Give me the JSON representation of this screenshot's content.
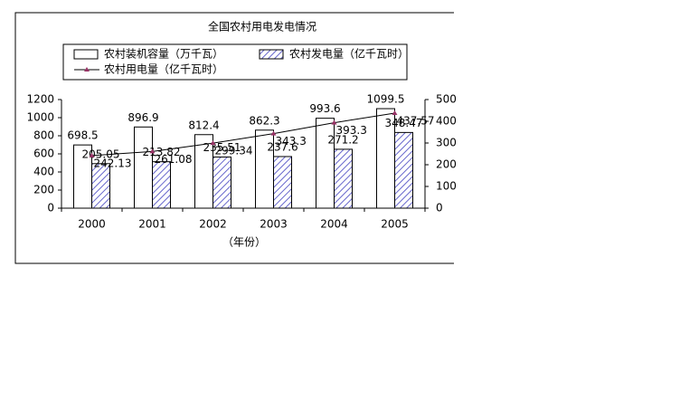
{
  "chart_data": {
    "type": "bar",
    "title": "全国农村用电发电情况",
    "x_label": "（年份）",
    "categories": [
      "2000",
      "2001",
      "2002",
      "2003",
      "2004",
      "2005"
    ],
    "series": [
      {
        "name": "农村装机容量（万千瓦）",
        "type": "bar",
        "color": "#ffffff",
        "values": [
          698.5,
          896.9,
          812.4,
          862.3,
          993.6,
          1099.5
        ]
      },
      {
        "name": "农村发电量（亿千瓦时）",
        "type": "bar",
        "axis": "y2",
        "color": "#8080ff",
        "values": [
          205.05,
          213.82,
          235.51,
          237.6,
          271.2,
          348.47
        ]
      },
      {
        "name": "农村用电量（亿千瓦时）",
        "type": "line",
        "axis": "y2",
        "color": "#993366",
        "values": [
          242.13,
          261.08,
          299.34,
          343.3,
          393.3,
          437.57
        ]
      }
    ],
    "ylim": [
      0,
      1200
    ],
    "yticks": [
      0,
      200,
      400,
      600,
      800,
      1000,
      1200
    ],
    "y2lim": [
      0,
      500
    ],
    "y2ticks": [
      0,
      100,
      200,
      300,
      400,
      500
    ],
    "grid": false
  }
}
